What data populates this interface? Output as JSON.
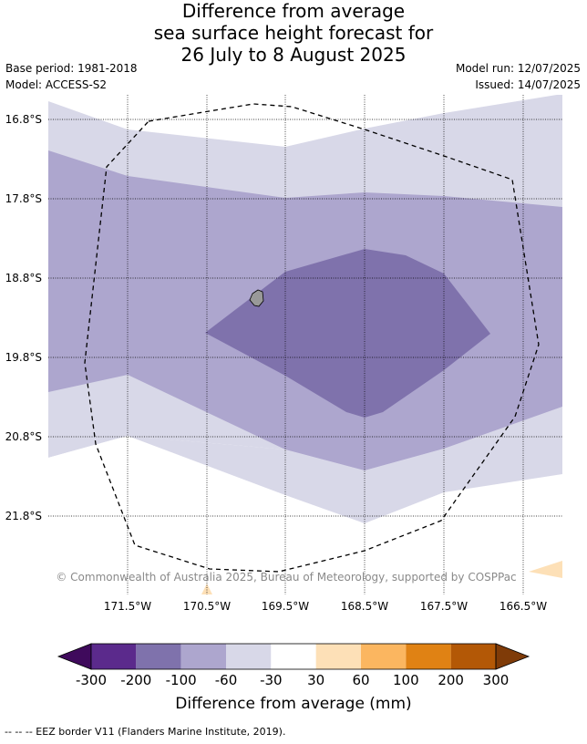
{
  "title": {
    "line1": "Difference from average",
    "line2": "sea surface height forecast for",
    "line3": "26 July to 8 August 2025"
  },
  "meta": {
    "base_period": "Base period: 1981-2018",
    "model": "Model: ACCESS-S2",
    "model_run": "Model run: 12/07/2025",
    "issued": "Issued: 14/07/2025"
  },
  "map": {
    "latitude_labels": [
      "16.8°S",
      "17.8°S",
      "18.8°S",
      "19.8°S",
      "20.8°S",
      "21.8°S"
    ],
    "longitude_labels": [
      "171.5°W",
      "170.5°W",
      "169.5°W",
      "168.5°W",
      "167.5°W",
      "166.5°W"
    ],
    "copyright": "© Commonwealth of Australia 2025, Bureau of Meteorology, supported by COSPPac",
    "colors": {
      "band_-100_-60": "#ada6ce",
      "band_-60_-30": "#d8d8e8",
      "band_-200_-100": "#7f72ac",
      "band_30_60": "#fde0b7",
      "land": "#999999"
    }
  },
  "colorbar": {
    "title": "Difference from average (mm)",
    "ticks": [
      "-300",
      "-200",
      "-100",
      "-60",
      "-30",
      "30",
      "60",
      "100",
      "200",
      "300"
    ],
    "colors": [
      "#3f0a5c",
      "#5b2a8c",
      "#7f72ac",
      "#ada6ce",
      "#d8d8e8",
      "#ffffff",
      "#fde0b7",
      "#fbb660",
      "#e08214",
      "#b35806",
      "#7f3b08"
    ]
  },
  "footer": {
    "eez_legend": "--  --  -- EEZ border V11 (Flanders Marine Institute, 2019)."
  }
}
